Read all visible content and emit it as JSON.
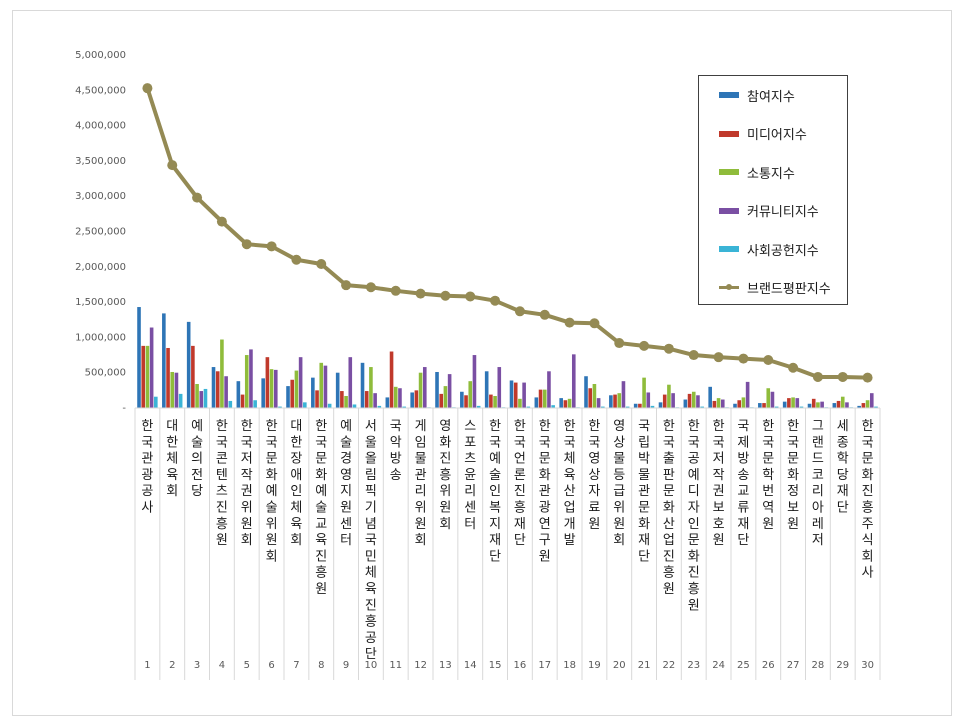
{
  "chart_data": {
    "type": "bar",
    "title": "",
    "xlabel": "",
    "ylabel": "",
    "ylim": [
      0,
      5000000
    ],
    "y_ticks": [
      "-",
      "500,000",
      "1,000,000",
      "1,500,000",
      "2,000,000",
      "2,500,000",
      "3,000,000",
      "3,500,000",
      "4,000,000",
      "4,500,000",
      "5,000,000"
    ],
    "grid": false,
    "legend_position": "top-right",
    "categories": [
      "한국관광공사",
      "대한체육회",
      "예술의전당",
      "한국콘텐츠진흥원",
      "한국저작권위원회",
      "한국문화예술위원회",
      "대한장애인체육회",
      "한국문화예술교육진흥원",
      "예술경영지원센터",
      "서울올림픽기념국민체육진흥공단",
      "국악방송",
      "게임물관리위원회",
      "영화진흥위원회",
      "스포츠윤리센터",
      "한국예술인복지재단",
      "한국언론진흥재단",
      "한국문화관광연구원",
      "한국체육산업개발",
      "한국영상자료원",
      "영상물등급위원회",
      "국립박물관문화재단",
      "한국출판문화산업진흥원",
      "한국공예디자인문화진흥원",
      "한국저작권보호원",
      "국제방송교류재단",
      "한국문학번역원",
      "한국문화정보원",
      "그랜드코리아레저",
      "세종학당재단",
      "한국문화진흥주식회사"
    ],
    "ranks": [
      "1",
      "2",
      "3",
      "4",
      "5",
      "6",
      "7",
      "8",
      "9",
      "10",
      "11",
      "12",
      "13",
      "14",
      "15",
      "16",
      "17",
      "18",
      "19",
      "20",
      "21",
      "22",
      "23",
      "24",
      "25",
      "26",
      "27",
      "28",
      "29",
      "30"
    ],
    "series": [
      {
        "name": "참여지수",
        "kind": "bar",
        "color": "#2e75b6",
        "values": [
          1430000,
          1340000,
          1220000,
          580000,
          380000,
          420000,
          310000,
          430000,
          500000,
          640000,
          150000,
          220000,
          510000,
          230000,
          520000,
          390000,
          150000,
          140000,
          450000,
          180000,
          60000,
          80000,
          120000,
          300000,
          60000,
          70000,
          90000,
          60000,
          70000,
          30000
        ]
      },
      {
        "name": "미디어지수",
        "kind": "bar",
        "color": "#c0392b",
        "values": [
          880000,
          850000,
          880000,
          520000,
          190000,
          720000,
          400000,
          250000,
          240000,
          240000,
          800000,
          250000,
          200000,
          180000,
          190000,
          360000,
          260000,
          110000,
          280000,
          190000,
          60000,
          190000,
          200000,
          100000,
          110000,
          70000,
          140000,
          130000,
          100000,
          70000
        ]
      },
      {
        "name": "소통지수",
        "kind": "bar",
        "color": "#8fbc3b",
        "values": [
          880000,
          510000,
          340000,
          970000,
          750000,
          550000,
          530000,
          640000,
          170000,
          580000,
          300000,
          500000,
          310000,
          380000,
          170000,
          130000,
          260000,
          130000,
          340000,
          210000,
          430000,
          330000,
          230000,
          140000,
          150000,
          280000,
          150000,
          80000,
          160000,
          110000
        ]
      },
      {
        "name": "커뮤니티지수",
        "kind": "bar",
        "color": "#7a4fa3",
        "values": [
          1140000,
          500000,
          240000,
          450000,
          830000,
          540000,
          720000,
          600000,
          720000,
          210000,
          280000,
          580000,
          480000,
          750000,
          580000,
          360000,
          520000,
          760000,
          140000,
          380000,
          220000,
          210000,
          180000,
          120000,
          370000,
          230000,
          140000,
          90000,
          80000,
          210000
        ]
      },
      {
        "name": "사회공헌지수",
        "kind": "bar",
        "color": "#3ab4d6",
        "values": [
          160000,
          200000,
          270000,
          100000,
          110000,
          20000,
          80000,
          60000,
          50000,
          30000,
          20000,
          10000,
          10000,
          30000,
          10000,
          20000,
          40000,
          10000,
          20000,
          20000,
          30000,
          10000,
          20000,
          10000,
          10000,
          20000,
          20000,
          10000,
          10000,
          20000
        ]
      },
      {
        "name": "브랜드평판지수",
        "kind": "line",
        "color": "#948a54",
        "values": [
          4530000,
          3440000,
          2980000,
          2640000,
          2320000,
          2290000,
          2100000,
          2040000,
          1740000,
          1710000,
          1660000,
          1620000,
          1590000,
          1580000,
          1520000,
          1370000,
          1320000,
          1210000,
          1200000,
          920000,
          880000,
          840000,
          750000,
          720000,
          700000,
          680000,
          570000,
          440000,
          440000,
          430000
        ]
      }
    ]
  }
}
